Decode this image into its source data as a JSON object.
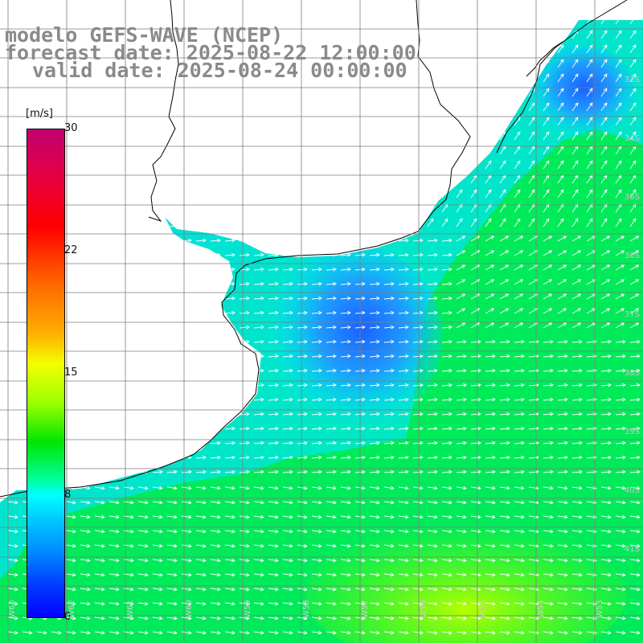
{
  "title": {
    "line1": "modelo GEFS-WAVE (NCEP)",
    "line2": "forecast date: 2025-08-22 12:00:00",
    "line3": "valid date: 2025-08-24 00:00:00"
  },
  "colorbar": {
    "unit": "[m/s]",
    "ticks": [
      "30",
      "22",
      "15",
      "8",
      "0"
    ],
    "colors": [
      "#c0006f",
      "#ff0000",
      "#ff6a00",
      "#f2ff00",
      "#00e600",
      "#00ffff",
      "#0090ff",
      "#0000ff"
    ]
  },
  "lat_labels": [
    "33S",
    "34S",
    "35S",
    "36S",
    "37S",
    "38S",
    "39S",
    "40S",
    "41S"
  ],
  "lon_labels": [
    "W63",
    "W62",
    "W61",
    "W60",
    "W59",
    "W58",
    "W57",
    "W56",
    "W55",
    "W54",
    "W53"
  ],
  "palette": {
    "ocean_green": "#00e600",
    "ocean_cyan": "#00e4ff",
    "ocean_blue": "#0078ff",
    "land": "#ffffff",
    "coast": "#000000",
    "grid": "#808080",
    "arrows": "#ffffff"
  }
}
